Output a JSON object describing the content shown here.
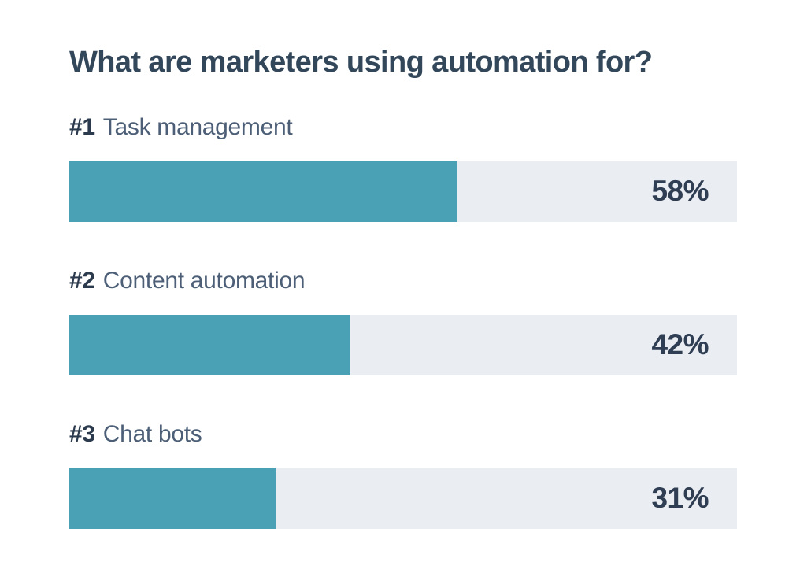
{
  "chart_data": {
    "type": "bar",
    "orientation": "horizontal",
    "title": "What are marketers using automation for?",
    "categories": [
      "Task management",
      "Content automation",
      "Chat bots"
    ],
    "values": [
      58,
      42,
      31
    ],
    "value_unit": "%",
    "xlim": [
      0,
      100
    ],
    "grid": false,
    "legend": false,
    "rows": [
      {
        "rank": "#1",
        "category": "Task management",
        "value": 58,
        "value_label": "58%"
      },
      {
        "rank": "#2",
        "category": "Content automation",
        "value": 42,
        "value_label": "42%"
      },
      {
        "rank": "#3",
        "category": "Chat bots",
        "value": 31,
        "value_label": "31%"
      }
    ],
    "colors": {
      "bar_fill": "#4aa1b5",
      "bar_track": "#eaedf2",
      "title_text": "#33475b",
      "label_text": "#4c5f77",
      "rank_text": "#2b3a4d",
      "value_text": "#2f3e53",
      "background": "#ffffff"
    }
  }
}
